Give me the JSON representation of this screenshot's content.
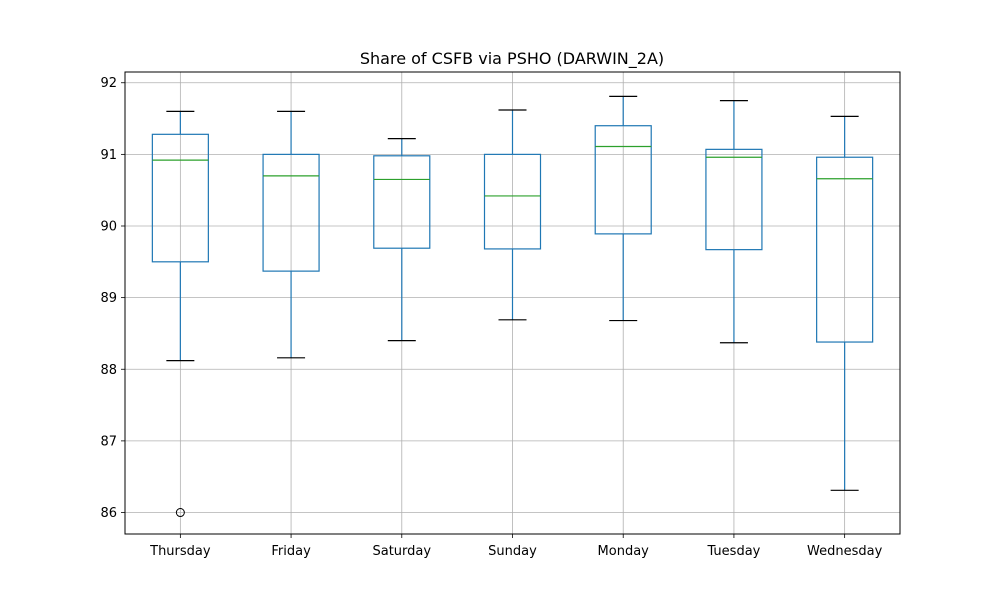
{
  "chart_data": {
    "type": "box",
    "title": "Share of CSFB via PSHO (DARWIN_2A)",
    "xlabel": "",
    "ylabel": "",
    "ylim": [
      85.7,
      92.15
    ],
    "yticks": [
      86,
      87,
      88,
      89,
      90,
      91,
      92
    ],
    "grid": true,
    "categories": [
      "Thursday",
      "Friday",
      "Saturday",
      "Sunday",
      "Monday",
      "Tuesday",
      "Wednesday"
    ],
    "boxes": [
      {
        "category": "Thursday",
        "whislo": 88.12,
        "q1": 89.5,
        "med": 90.92,
        "q3": 91.28,
        "whishi": 91.6,
        "fliers": [
          86.0
        ]
      },
      {
        "category": "Friday",
        "whislo": 88.16,
        "q1": 89.37,
        "med": 90.7,
        "q3": 91.0,
        "whishi": 91.6,
        "fliers": []
      },
      {
        "category": "Saturday",
        "whislo": 88.4,
        "q1": 89.69,
        "med": 90.65,
        "q3": 90.98,
        "whishi": 91.22,
        "fliers": []
      },
      {
        "category": "Sunday",
        "whislo": 88.69,
        "q1": 89.68,
        "med": 90.42,
        "q3": 91.0,
        "whishi": 91.62,
        "fliers": []
      },
      {
        "category": "Monday",
        "whislo": 88.68,
        "q1": 89.89,
        "med": 91.11,
        "q3": 91.4,
        "whishi": 91.81,
        "fliers": []
      },
      {
        "category": "Tuesday",
        "whislo": 88.37,
        "q1": 89.67,
        "med": 90.96,
        "q3": 91.07,
        "whishi": 91.75,
        "fliers": []
      },
      {
        "category": "Wednesday",
        "whislo": 86.31,
        "q1": 88.38,
        "med": 90.66,
        "q3": 90.96,
        "whishi": 91.53,
        "fliers": []
      }
    ],
    "colors": {
      "box": "#1f77b4",
      "median": "#2ca02c",
      "cap": "#000000",
      "flier": "#000000",
      "grid": "#b0b0b0"
    }
  }
}
